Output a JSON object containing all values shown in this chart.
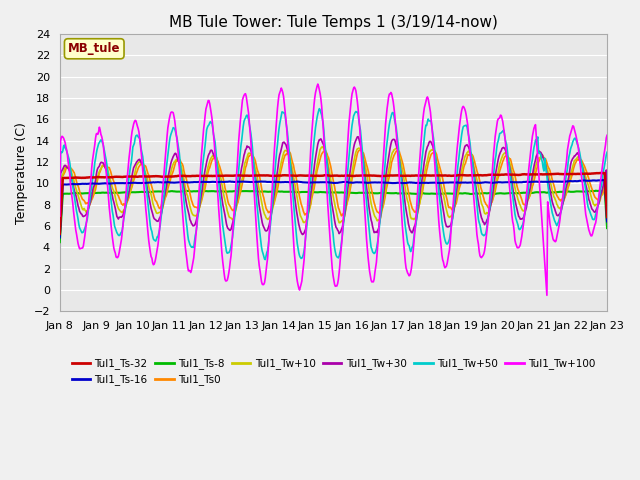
{
  "title": "MB Tule Tower: Tule Temps 1 (3/19/14-now)",
  "ylabel": "Temperature (C)",
  "ylim": [
    -2,
    24
  ],
  "yticks": [
    -2,
    0,
    2,
    4,
    6,
    8,
    10,
    12,
    14,
    16,
    18,
    20,
    22,
    24
  ],
  "legend_label": "MB_tule",
  "series": [
    {
      "label": "Tul1_Ts-32",
      "color": "#cc0000",
      "linewidth": 1.8,
      "zorder": 5
    },
    {
      "label": "Tul1_Ts-16",
      "color": "#0000cc",
      "linewidth": 1.5,
      "zorder": 4
    },
    {
      "label": "Tul1_Ts-8",
      "color": "#00bb00",
      "linewidth": 1.5,
      "zorder": 3
    },
    {
      "label": "Tul1_Ts0",
      "color": "#ff8800",
      "linewidth": 1.2,
      "zorder": 3
    },
    {
      "label": "Tul1_Tw+10",
      "color": "#cccc00",
      "linewidth": 1.2,
      "zorder": 3
    },
    {
      "label": "Tul1_Tw+30",
      "color": "#aa00aa",
      "linewidth": 1.2,
      "zorder": 3
    },
    {
      "label": "Tul1_Tw+50",
      "color": "#00cccc",
      "linewidth": 1.2,
      "zorder": 3
    },
    {
      "label": "Tul1_Tw+100",
      "color": "#ff00ff",
      "linewidth": 1.2,
      "zorder": 6
    }
  ],
  "xtick_labels": [
    "Jan 8",
    "Jan 9",
    "Jan 10",
    "Jan 11",
    "Jan 12",
    "Jan 13",
    "Jan 14",
    "Jan 15",
    "Jan 16",
    "Jan 17",
    "Jan 18",
    "Jan 19",
    "Jan 20",
    "Jan 21",
    "Jan 22",
    "Jan 23"
  ],
  "n_days": 15,
  "pts_per_day": 48,
  "title_fontsize": 11,
  "axis_fontsize": 9,
  "tick_fontsize": 8,
  "fig_facecolor": "#f0f0f0",
  "ax_facecolor": "#e8e8e8",
  "grid_color": "#ffffff"
}
